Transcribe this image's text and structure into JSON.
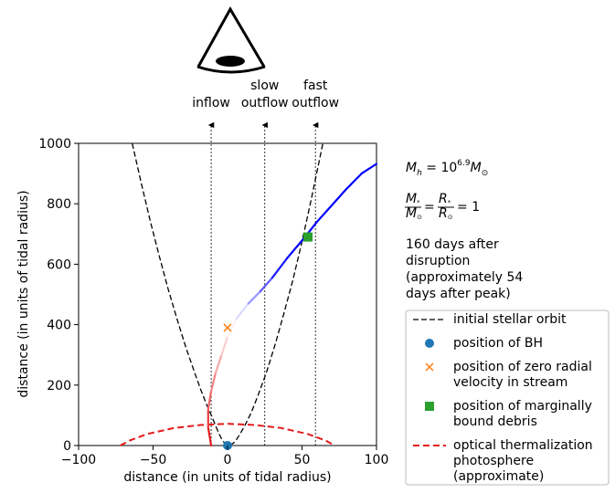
{
  "chart_data": {
    "type": "line",
    "xlabel": "distance (in units of tidal radius)",
    "ylabel": "distance (in units of tidal radius)",
    "xlim": [
      -100,
      100
    ],
    "ylim": [
      0,
      1000
    ],
    "xticks": [
      -100,
      -50,
      0,
      50,
      100
    ],
    "yticks": [
      0,
      200,
      400,
      600,
      800,
      1000
    ],
    "grid": false,
    "legend_placement": "right, outside plot",
    "viewer_icon": "eye-icon",
    "observer_lines": [
      {
        "x": -11,
        "label_lines": [
          "inflow"
        ]
      },
      {
        "x": 25,
        "label_lines": [
          "slow",
          "outflow"
        ]
      },
      {
        "x": 59,
        "label_lines": [
          "fast",
          "outflow"
        ]
      }
    ],
    "series": [
      {
        "name": "initial stellar orbit",
        "style": "dashed",
        "color": "#000000",
        "x": [
          -64,
          -58,
          -52,
          -46,
          -40,
          -34,
          -28,
          -22,
          -18,
          -14,
          -10,
          -8,
          -6,
          -4,
          -2,
          0,
          2,
          4,
          6,
          8,
          10,
          12,
          16,
          20,
          26,
          32,
          38,
          44,
          50,
          56,
          60,
          64
        ],
        "y": [
          1000,
          870,
          745,
          630,
          520,
          420,
          325,
          240,
          185,
          135,
          90,
          65,
          42,
          22,
          8,
          2,
          2,
          8,
          20,
          35,
          52,
          70,
          110,
          160,
          240,
          335,
          440,
          550,
          675,
          810,
          905,
          1000
        ]
      },
      {
        "name": "optical thermalization photosphere (approximate)",
        "style": "dashed",
        "color": "#e41a1c",
        "x": [
          -72,
          -66,
          -54,
          -36,
          -18,
          0,
          18,
          36,
          54,
          66,
          72
        ],
        "y": [
          0,
          16,
          38,
          58,
          68,
          72,
          68,
          58,
          38,
          16,
          0
        ]
      },
      {
        "name": "debris stream",
        "style": "solid",
        "color_map": [
          "#e41a1c",
          "#ffffff",
          "#0000ff"
        ],
        "x": [
          -11,
          -13,
          -13,
          -11,
          -8,
          -4,
          0,
          6,
          14,
          22,
          30,
          40,
          52,
          60,
          70,
          80,
          90,
          100
        ],
        "y": [
          0,
          60,
          120,
          180,
          240,
          300,
          360,
          420,
          470,
          510,
          555,
          620,
          690,
          740,
          795,
          850,
          900,
          932
        ]
      }
    ],
    "markers": [
      {
        "name": "position of BH",
        "x": 0,
        "y": 0,
        "symbol": "circle",
        "color": "#1f77b4"
      },
      {
        "name": "position of zero radial velocity in stream",
        "x": 0,
        "y": 390,
        "symbol": "x",
        "color": "#ff7f0e"
      },
      {
        "name": "position of marginally bound debris",
        "x": 54,
        "y": 690,
        "symbol": "square",
        "color": "#2ca02c"
      }
    ],
    "legend": [
      {
        "label_lines": [
          "initial stellar orbit"
        ],
        "symbol": "dashed",
        "color": "#000000"
      },
      {
        "label_lines": [
          "position of BH"
        ],
        "symbol": "circle",
        "color": "#1f77b4"
      },
      {
        "label_lines": [
          "position of zero radial",
          "velocity in stream"
        ],
        "symbol": "x",
        "color": "#ff7f0e"
      },
      {
        "label_lines": [
          "position of marginally",
          "bound debris"
        ],
        "symbol": "square",
        "color": "#2ca02c"
      },
      {
        "label_lines": [
          "optical thermalization",
          "photosphere",
          "(approximate)"
        ],
        "symbol": "dashed",
        "color": "#e41a1c"
      }
    ],
    "annotations": {
      "mass_prefix": "M",
      "mass_sub": "h",
      "mass_eq": " = 10",
      "mass_exp": "6.9",
      "mass_unit": "M",
      "mass_unit_sub": "⊙",
      "ratio_m_num": "M",
      "ratio_m_num_sub": "*",
      "ratio_m_den": "M",
      "ratio_m_den_sub": "⊙",
      "ratio_r_num": "R",
      "ratio_r_num_sub": "*",
      "ratio_r_den": "R",
      "ratio_r_den_sub": "⊙",
      "ratio_value": "1",
      "time_lines": [
        "160 days after",
        "disruption",
        "(approximately 54",
        "days after peak)"
      ]
    }
  }
}
